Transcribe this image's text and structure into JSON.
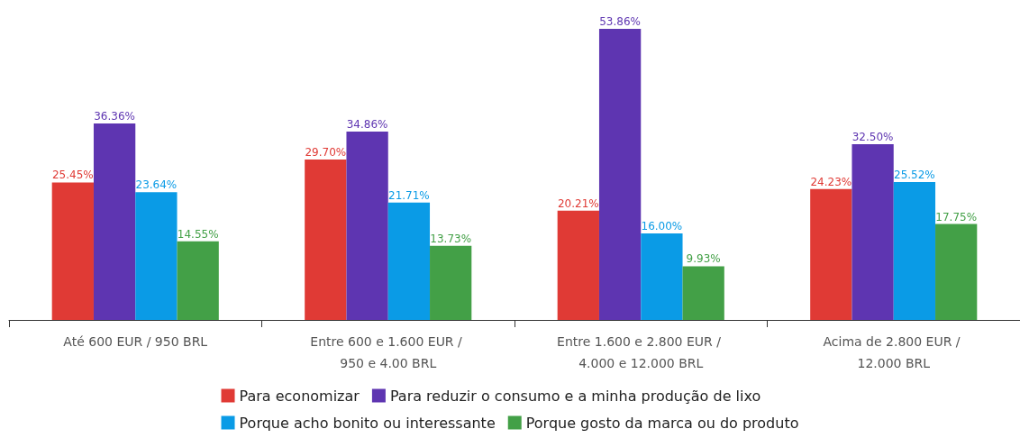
{
  "chart_data": {
    "type": "bar",
    "categories": [
      "Até 600 EUR / 950 BRL",
      "Entre 600 e 1.600 EUR / 950 e 4.00 BRL",
      "Entre 1.600 e 2.800 EUR / 4.000 e 12.000 BRL",
      "Acima de 2.800 EUR / 12.000 BRL"
    ],
    "series": [
      {
        "name": "Para economizar",
        "color": "#e03a35",
        "values": [
          25.45,
          29.7,
          20.21,
          24.23
        ],
        "value_labels": [
          "25.45%",
          "29.70%",
          "20.21%",
          "24.23%"
        ]
      },
      {
        "name": "Para reduzir o consumo e a minha produção de lixo",
        "color": "#5e35b1",
        "values": [
          36.36,
          34.86,
          53.86,
          32.5
        ],
        "value_labels": [
          "36.36%",
          "34.86%",
          "53.86%",
          "32.50%"
        ]
      },
      {
        "name": "Porque acho bonito ou interessante",
        "color": "#0a9be6",
        "values": [
          23.64,
          21.71,
          16.0,
          25.52
        ],
        "value_labels": [
          "23.64%",
          "21.71%",
          "16.00%",
          "25.52%"
        ]
      },
      {
        "name": "Porque gosto da marca ou do produto",
        "color": "#43a047",
        "values": [
          14.55,
          13.73,
          9.93,
          17.75
        ],
        "value_labels": [
          "14.55%",
          "13.73%",
          "9.93%",
          "17.75%"
        ]
      }
    ],
    "legend": "bottom"
  }
}
